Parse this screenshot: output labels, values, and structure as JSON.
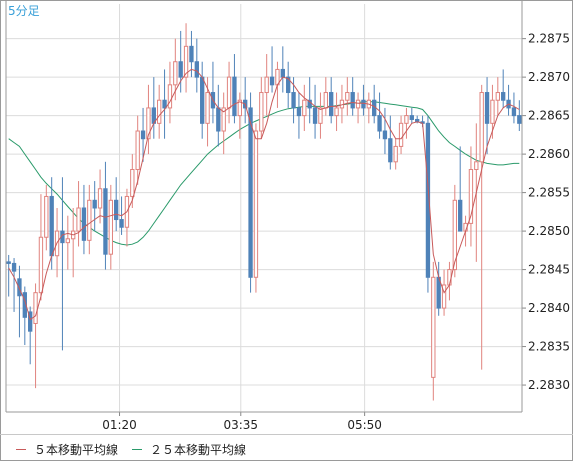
{
  "chart_data": {
    "type": "candlestick",
    "timeframe_label": "5分足",
    "x_tick_labels": [
      "01:20",
      "03:35",
      "05:50"
    ],
    "y_ticks": [
      2.283,
      2.2835,
      2.284,
      2.2845,
      2.285,
      2.2855,
      2.286,
      2.2865,
      2.287,
      2.2875
    ],
    "y_tick_labels": [
      "2.2830",
      "2.2835",
      "2.2840",
      "2.2845",
      "2.2850",
      "2.2855",
      "2.2860",
      "2.2865",
      "2.2870",
      "2.2875"
    ],
    "ylim": [
      2.28265,
      2.28795
    ],
    "grid": true,
    "legend_position": "bottom-left",
    "up_color": "#e0837e",
    "down_color": "#4f82b8",
    "candles": [
      [
        2.2846,
        2.28469,
        2.28415,
        2.28458
      ],
      [
        2.28458,
        2.28465,
        2.28395,
        2.28448
      ],
      [
        2.28438,
        2.28455,
        2.28362,
        2.28416
      ],
      [
        2.2842,
        2.28428,
        2.28352,
        2.28388
      ],
      [
        2.28395,
        2.28402,
        2.28327,
        2.2837
      ],
      [
        2.2838,
        2.28432,
        2.28296,
        2.2842
      ],
      [
        2.2842,
        2.28548,
        2.2841,
        2.28492
      ],
      [
        2.28492,
        2.2856,
        2.28475,
        2.28545
      ],
      [
        2.28545,
        2.2857,
        2.2845,
        2.28468
      ],
      [
        2.28468,
        2.2853,
        2.2844,
        2.285
      ],
      [
        2.285,
        2.2857,
        2.28345,
        2.28485
      ],
      [
        2.28485,
        2.2852,
        2.2845,
        2.2849
      ],
      [
        2.2849,
        2.2853,
        2.2844,
        2.285
      ],
      [
        2.285,
        2.28565,
        2.2848,
        2.2853
      ],
      [
        2.2853,
        2.2856,
        2.2847,
        2.28488
      ],
      [
        2.28488,
        2.2856,
        2.2847,
        2.2854
      ],
      [
        2.2854,
        2.28565,
        2.285,
        2.2853
      ],
      [
        2.2853,
        2.2858,
        2.2851,
        2.28555
      ],
      [
        2.28555,
        2.2859,
        2.2845,
        2.2847
      ],
      [
        2.2847,
        2.2856,
        2.2845,
        2.2854
      ],
      [
        2.2854,
        2.2857,
        2.285,
        2.28515
      ],
      [
        2.28515,
        2.28545,
        2.28495,
        2.28505
      ],
      [
        2.28505,
        2.28555,
        2.2848,
        2.28545
      ],
      [
        2.28545,
        2.286,
        2.2853,
        2.2858
      ],
      [
        2.2858,
        2.2865,
        2.2856,
        2.2863
      ],
      [
        2.2863,
        2.2866,
        2.2859,
        2.2862
      ],
      [
        2.2862,
        2.2869,
        2.286,
        2.2866
      ],
      [
        2.2866,
        2.287,
        2.2862,
        2.2864
      ],
      [
        2.2864,
        2.2869,
        2.2862,
        2.2867
      ],
      [
        2.2867,
        2.2871,
        2.2862,
        2.2866
      ],
      [
        2.2866,
        2.2872,
        2.2864,
        2.2869
      ],
      [
        2.2869,
        2.2875,
        2.2867,
        2.2872
      ],
      [
        2.2872,
        2.2876,
        2.2868,
        2.287
      ],
      [
        2.287,
        2.2877,
        2.2868,
        2.2874
      ],
      [
        2.2874,
        2.2876,
        2.287,
        2.2872
      ],
      [
        2.2872,
        2.2875,
        2.2868,
        2.287
      ],
      [
        2.287,
        2.2872,
        2.2862,
        2.2864
      ],
      [
        2.2864,
        2.287,
        2.2861,
        2.2868
      ],
      [
        2.2868,
        2.2872,
        2.2864,
        2.2866
      ],
      [
        2.2866,
        2.2869,
        2.2861,
        2.2863
      ],
      [
        2.2863,
        2.2868,
        2.286,
        2.2866
      ],
      [
        2.2866,
        2.2872,
        2.2864,
        2.287
      ],
      [
        2.287,
        2.2873,
        2.2864,
        2.2865
      ],
      [
        2.2865,
        2.2868,
        2.2862,
        2.2867
      ],
      [
        2.2867,
        2.287,
        2.2864,
        2.2866
      ],
      [
        2.2866,
        2.2868,
        2.2842,
        2.2844
      ],
      [
        2.2844,
        2.2864,
        2.2842,
        2.2863
      ],
      [
        2.2863,
        2.287,
        2.2862,
        2.2868
      ],
      [
        2.2868,
        2.2873,
        2.2865,
        2.287
      ],
      [
        2.287,
        2.2874,
        2.2868,
        2.2869
      ],
      [
        2.2869,
        2.2872,
        2.2866,
        2.2871
      ],
      [
        2.2871,
        2.2874,
        2.2868,
        2.287
      ],
      [
        2.287,
        2.2872,
        2.2866,
        2.2868
      ],
      [
        2.2868,
        2.287,
        2.2864,
        2.2866
      ],
      [
        2.2866,
        2.2868,
        2.2862,
        2.2865
      ],
      [
        2.2865,
        2.2869,
        2.2863,
        2.2867
      ],
      [
        2.2867,
        2.287,
        2.2864,
        2.2866
      ],
      [
        2.2866,
        2.2869,
        2.2862,
        2.2864
      ],
      [
        2.2864,
        2.2868,
        2.2862,
        2.2866
      ],
      [
        2.2866,
        2.287,
        2.2865,
        2.2868
      ],
      [
        2.2868,
        2.287,
        2.2864,
        2.2865
      ],
      [
        2.2865,
        2.2868,
        2.2863,
        2.2866
      ],
      [
        2.2866,
        2.2869,
        2.2864,
        2.2867
      ],
      [
        2.2867,
        2.287,
        2.2865,
        2.2868
      ],
      [
        2.2868,
        2.287,
        2.2865,
        2.2866
      ],
      [
        2.2866,
        2.2868,
        2.2864,
        2.2867
      ],
      [
        2.2867,
        2.2869,
        2.2865,
        2.2866
      ],
      [
        2.2866,
        2.2868,
        2.2864,
        2.2867
      ],
      [
        2.2867,
        2.2869,
        2.2864,
        2.2865
      ],
      [
        2.2865,
        2.2868,
        2.2862,
        2.2863
      ],
      [
        2.2863,
        2.2866,
        2.286,
        2.2862
      ],
      [
        2.2862,
        2.2865,
        2.2858,
        2.2859
      ],
      [
        2.2859,
        2.2862,
        2.2858,
        2.2861
      ],
      [
        2.2861,
        2.2865,
        2.286,
        2.2864
      ],
      [
        2.2864,
        2.2866,
        2.2862,
        2.2865
      ],
      [
        2.2865,
        2.2866,
        2.2864,
        2.28645
      ],
      [
        2.28645,
        2.2865,
        2.2864,
        2.28642
      ],
      [
        2.28642,
        2.2865,
        2.28635,
        2.2864
      ],
      [
        2.2864,
        2.2865,
        2.2842,
        2.2844
      ],
      [
        2.2831,
        2.2846,
        2.2828,
        2.2844
      ],
      [
        2.2844,
        2.2846,
        2.2839,
        2.284
      ],
      [
        2.284,
        2.2845,
        2.2839,
        2.2843
      ],
      [
        2.2843,
        2.2846,
        2.2841,
        2.2845
      ],
      [
        2.2845,
        2.2856,
        2.2844,
        2.2854
      ],
      [
        2.2854,
        2.2861,
        2.285,
        2.285
      ],
      [
        2.285,
        2.2852,
        2.2848,
        2.2851
      ],
      [
        2.2851,
        2.2861,
        2.2848,
        2.2858
      ],
      [
        2.2858,
        2.2864,
        2.2846,
        2.2859
      ],
      [
        2.2859,
        2.2869,
        2.2832,
        2.2868
      ],
      [
        2.2868,
        2.287,
        2.286,
        2.2864
      ],
      [
        2.2864,
        2.2869,
        2.2862,
        2.2867
      ],
      [
        2.2867,
        2.287,
        2.2865,
        2.2868
      ],
      [
        2.2868,
        2.2871,
        2.2866,
        2.2867
      ],
      [
        2.2867,
        2.2869,
        2.2865,
        2.2866
      ],
      [
        2.2866,
        2.2868,
        2.2864,
        2.2865
      ],
      [
        2.2865,
        2.2867,
        2.2863,
        2.2864
      ]
    ],
    "series": [
      {
        "name": "５本移動平均線",
        "color": "#c85a5a",
        "values": [
          2.28452,
          2.2844,
          2.28425,
          2.2841,
          2.28385,
          2.2839,
          2.28415,
          2.28445,
          2.28468,
          2.28485,
          2.28495,
          2.28497,
          2.28495,
          2.28498,
          2.28505,
          2.2851,
          2.28515,
          2.2852,
          2.28518,
          2.2852,
          2.28522,
          2.2852,
          2.28525,
          2.2854,
          2.28565,
          2.28595,
          2.28625,
          2.2864,
          2.2865,
          2.28658,
          2.28668,
          2.28682,
          2.28695,
          2.28705,
          2.2871,
          2.28708,
          2.287,
          2.28685,
          2.2867,
          2.2866,
          2.28655,
          2.2866,
          2.28665,
          2.28668,
          2.28665,
          2.2864,
          2.2862,
          2.2862,
          2.2864,
          2.28668,
          2.2869,
          2.287,
          2.28698,
          2.2869,
          2.2868,
          2.28673,
          2.28668,
          2.28662,
          2.28658,
          2.2866,
          2.28662,
          2.28662,
          2.28664,
          2.28666,
          2.28667,
          2.28666,
          2.28666,
          2.28665,
          2.28662,
          2.28656,
          2.28646,
          2.28632,
          2.2862,
          2.2862,
          2.2863,
          2.2864,
          2.28642,
          2.2864,
          2.2856,
          2.2847,
          2.2844,
          2.2842,
          2.2843,
          2.2846,
          2.2848,
          2.285,
          2.2852,
          2.2855,
          2.2858,
          2.2861,
          2.2863,
          2.2865,
          2.2866,
          2.28665,
          2.28662,
          2.28658
        ]
      },
      {
        "name": "２５本移動平均線",
        "color": "#2a9a6a",
        "values": [
          2.2862,
          2.28615,
          2.2861,
          2.286,
          2.2859,
          2.2858,
          2.2857,
          2.28562,
          2.28555,
          2.28548,
          2.2854,
          2.28532,
          2.28524,
          2.28516,
          2.2851,
          2.28505,
          2.285,
          2.28496,
          2.28492,
          2.28488,
          2.28485,
          2.28483,
          2.28482,
          2.28483,
          2.28486,
          2.28492,
          2.285,
          2.2851,
          2.2852,
          2.2853,
          2.2854,
          2.2855,
          2.2856,
          2.28568,
          2.28576,
          2.28584,
          2.28592,
          2.286,
          2.28606,
          2.28612,
          2.28617,
          2.28622,
          2.28627,
          2.28632,
          2.28636,
          2.2864,
          2.28643,
          2.28646,
          2.28649,
          2.28652,
          2.28655,
          2.28657,
          2.28659,
          2.2866,
          2.28661,
          2.28662,
          2.28662,
          2.28662,
          2.28662,
          2.28662,
          2.28662,
          2.28663,
          2.28664,
          2.28665,
          2.28666,
          2.28667,
          2.28668,
          2.28668,
          2.28668,
          2.28667,
          2.28666,
          2.28665,
          2.28664,
          2.28663,
          2.28662,
          2.28661,
          2.2866,
          2.28658,
          2.2865,
          2.2864,
          2.2863,
          2.28622,
          2.28615,
          2.2861,
          2.28605,
          2.286,
          2.28596,
          2.28592,
          2.2859,
          2.28588,
          2.28587,
          2.28586,
          2.28586,
          2.28587,
          2.28588,
          2.28588
        ]
      }
    ]
  }
}
